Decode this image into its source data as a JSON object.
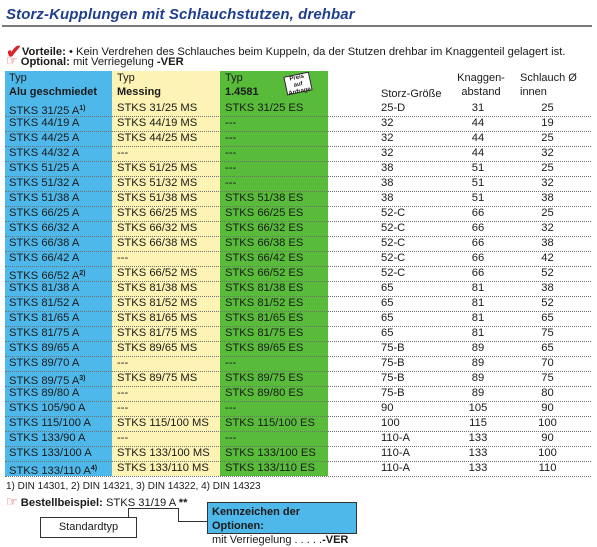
{
  "title": "Storz-Kupplungen mit Schlauchstutzen, drehbar",
  "vorteile": {
    "label": "Vorteile:",
    "text": "• Kein Verdrehen des Schlauches beim Kuppeln, da der Stutzen drehbar im Knaggenteil gelagert ist."
  },
  "optional": {
    "label": "Optional:",
    "text": "mit Verriegelung",
    "code": "-VER"
  },
  "headers": {
    "alu_type": "Typ",
    "alu_material": "Alu geschmiedet",
    "messing_type": "Typ",
    "messing_material": "Messing",
    "es_type": "Typ",
    "es_material": "1.4581",
    "stamp": "Preis auf Anfrage",
    "storz": "Storz-Größe",
    "knaggen_1": "Knaggen-",
    "knaggen_2": "abstand",
    "schlauch_1": "Schlauch Ø",
    "schlauch_2": "innen"
  },
  "rows": [
    {
      "alu": "STKS 31/25 A",
      "alu_sup": "1)",
      "ms": "STKS 31/25 MS",
      "es": "STKS 31/25 ES",
      "storz": "25-D",
      "knaggen": "31",
      "schlauch": "25"
    },
    {
      "alu": "STKS 44/19 A",
      "alu_sup": "",
      "ms": "STKS 44/19 MS",
      "es": "---",
      "storz": "32",
      "knaggen": "44",
      "schlauch": "19"
    },
    {
      "alu": "STKS 44/25 A",
      "alu_sup": "",
      "ms": "STKS 44/25 MS",
      "es": "---",
      "storz": "32",
      "knaggen": "44",
      "schlauch": "25"
    },
    {
      "alu": "STKS 44/32 A",
      "alu_sup": "",
      "ms": "---",
      "es": "---",
      "storz": "32",
      "knaggen": "44",
      "schlauch": "32"
    },
    {
      "alu": "STKS 51/25 A",
      "alu_sup": "",
      "ms": "STKS 51/25 MS",
      "es": "---",
      "storz": "38",
      "knaggen": "51",
      "schlauch": "25"
    },
    {
      "alu": "STKS 51/32 A",
      "alu_sup": "",
      "ms": "STKS 51/32 MS",
      "es": "---",
      "storz": "38",
      "knaggen": "51",
      "schlauch": "32"
    },
    {
      "alu": "STKS 51/38 A",
      "alu_sup": "",
      "ms": "STKS 51/38 MS",
      "es": "STKS 51/38 ES",
      "storz": "38",
      "knaggen": "51",
      "schlauch": "38"
    },
    {
      "alu": "STKS 66/25 A",
      "alu_sup": "",
      "ms": "STKS 66/25 MS",
      "es": "STKS 66/25 ES",
      "storz": "52-C",
      "knaggen": "66",
      "schlauch": "25"
    },
    {
      "alu": "STKS 66/32 A",
      "alu_sup": "",
      "ms": "STKS 66/32 MS",
      "es": "STKS 66/32 ES",
      "storz": "52-C",
      "knaggen": "66",
      "schlauch": "32"
    },
    {
      "alu": "STKS 66/38 A",
      "alu_sup": "",
      "ms": "STKS 66/38 MS",
      "es": "STKS 66/38 ES",
      "storz": "52-C",
      "knaggen": "66",
      "schlauch": "38"
    },
    {
      "alu": "STKS 66/42 A",
      "alu_sup": "",
      "ms": "---",
      "es": "STKS 66/42 ES",
      "storz": "52-C",
      "knaggen": "66",
      "schlauch": "42"
    },
    {
      "alu": "STKS 66/52 A",
      "alu_sup": "2)",
      "ms": "STKS 66/52 MS",
      "es": "STKS 66/52 ES",
      "storz": "52-C",
      "knaggen": "66",
      "schlauch": "52"
    },
    {
      "alu": "STKS 81/38 A",
      "alu_sup": "",
      "ms": "STKS 81/38 MS",
      "es": "STKS 81/38 ES",
      "storz": "65",
      "knaggen": "81",
      "schlauch": "38"
    },
    {
      "alu": "STKS 81/52 A",
      "alu_sup": "",
      "ms": "STKS 81/52 MS",
      "es": "STKS 81/52 ES",
      "storz": "65",
      "knaggen": "81",
      "schlauch": "52"
    },
    {
      "alu": "STKS 81/65 A",
      "alu_sup": "",
      "ms": "STKS 81/65 MS",
      "es": "STKS 81/65 ES",
      "storz": "65",
      "knaggen": "81",
      "schlauch": "65"
    },
    {
      "alu": "STKS 81/75 A",
      "alu_sup": "",
      "ms": "STKS 81/75 MS",
      "es": "STKS 81/75 ES",
      "storz": "65",
      "knaggen": "81",
      "schlauch": "75"
    },
    {
      "alu": "STKS 89/65 A",
      "alu_sup": "",
      "ms": "STKS 89/65 MS",
      "es": "STKS 89/65 ES",
      "storz": "75-B",
      "knaggen": "89",
      "schlauch": "65"
    },
    {
      "alu": "STKS 89/70 A",
      "alu_sup": "",
      "ms": "---",
      "es": "---",
      "storz": "75-B",
      "knaggen": "89",
      "schlauch": "70"
    },
    {
      "alu": "STKS 89/75 A",
      "alu_sup": "3)",
      "ms": "STKS 89/75 MS",
      "es": "STKS 89/75 ES",
      "storz": "75-B",
      "knaggen": "89",
      "schlauch": "75"
    },
    {
      "alu": "STKS 89/80 A",
      "alu_sup": "",
      "ms": "---",
      "es": "STKS 89/80 ES",
      "storz": "75-B",
      "knaggen": "89",
      "schlauch": "80"
    },
    {
      "alu": "STKS 105/90 A",
      "alu_sup": "",
      "ms": "---",
      "es": "---",
      "storz": "90",
      "knaggen": "105",
      "schlauch": "90"
    },
    {
      "alu": "STKS 115/100 A",
      "alu_sup": "",
      "ms": "STKS 115/100 MS",
      "es": "STKS 115/100 ES",
      "storz": "100",
      "knaggen": "115",
      "schlauch": "100"
    },
    {
      "alu": "STKS 133/90 A",
      "alu_sup": "",
      "ms": "---",
      "es": "---",
      "storz": "110-A",
      "knaggen": "133",
      "schlauch": "90"
    },
    {
      "alu": "STKS 133/100 A",
      "alu_sup": "",
      "ms": "STKS 133/100 MS",
      "es": "STKS 133/100 ES",
      "storz": "110-A",
      "knaggen": "133",
      "schlauch": "100"
    },
    {
      "alu": "STKS 133/110 A",
      "alu_sup": "4)",
      "ms": "STKS 133/110 MS",
      "es": "STKS 133/110 ES",
      "storz": "110-A",
      "knaggen": "133",
      "schlauch": "110"
    }
  ],
  "footnote": "1) DIN 14301, 2) DIN 14321, 3) DIN 14322, 4) DIN 14323",
  "bestell": {
    "label": "Bestellbeispiel:",
    "value": "STKS 31/19 A",
    "suffix": "**"
  },
  "standardtyp": "Standardtyp",
  "kennzeichen": {
    "title": "Kennzeichen der Optionen:",
    "text": "mit Verriegelung . . . . .",
    "code": "-VER"
  },
  "colors": {
    "alu": "#4fb8ea",
    "messing": "#fdf3b4",
    "es": "#58bb3a",
    "title": "#1f3f8c",
    "accent": "#d8232a"
  }
}
